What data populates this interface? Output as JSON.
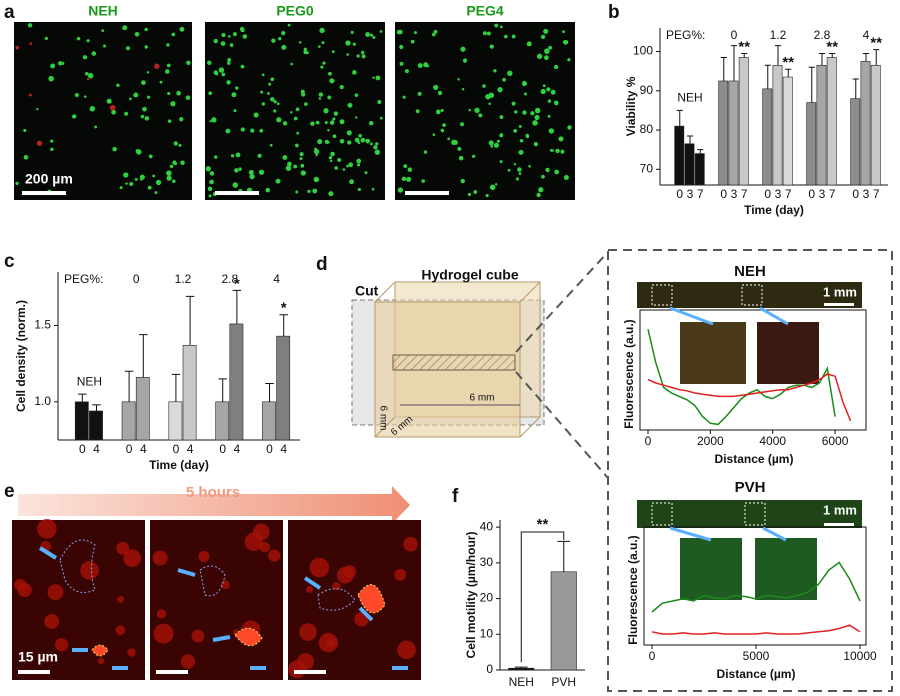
{
  "panel_a": {
    "letter": "a",
    "titles": [
      "NEH",
      "PEG0",
      "PEG4"
    ],
    "scale_bar": "200 µm"
  },
  "panel_d": {
    "letter": "d",
    "cube_label": "Hydrogel cube",
    "cut_label": "Cut",
    "dims": [
      "6 mm",
      "6 mm",
      "6 mm"
    ]
  },
  "panel_e": {
    "letter": "e",
    "duration": "5 hours",
    "scale_bar": "15 µm"
  },
  "chart_data": [
    {
      "type": "grouped_bar",
      "letter": "b",
      "ylabel": "Viability %",
      "xlabel": "Time (day)",
      "group_prefix": "PEG%:",
      "ylim": [
        66,
        106
      ],
      "yticks": [
        70,
        80,
        90,
        100
      ],
      "groups": [
        {
          "name": "NEH",
          "categories": [
            "0",
            "3",
            "7"
          ],
          "colors": [
            "#111111",
            "#111111",
            "#111111"
          ],
          "values": [
            81,
            76.5,
            74
          ],
          "errors": [
            4,
            2,
            1
          ],
          "stars": [
            null,
            null,
            null
          ]
        },
        {
          "name": "0",
          "categories": [
            "0",
            "3",
            "7"
          ],
          "colors": [
            "#8c8c8c",
            "#a6a6a6",
            "#c8c8c8"
          ],
          "values": [
            92.5,
            92.5,
            98.5
          ],
          "errors": [
            6,
            9,
            1
          ],
          "stars": [
            null,
            null,
            "**"
          ]
        },
        {
          "name": "1.2",
          "categories": [
            "0",
            "3",
            "7"
          ],
          "colors": [
            "#8c8c8c",
            "#c8c8c8",
            "#d9d9d9"
          ],
          "values": [
            90.5,
            96.5,
            93.5
          ],
          "errors": [
            6,
            5,
            2
          ],
          "stars": [
            null,
            null,
            "**"
          ]
        },
        {
          "name": "2.8",
          "categories": [
            "0",
            "3",
            "7"
          ],
          "colors": [
            "#8c8c8c",
            "#a6a6a6",
            "#c8c8c8"
          ],
          "values": [
            87,
            96.5,
            98.5
          ],
          "errors": [
            9,
            3,
            1
          ],
          "stars": [
            null,
            null,
            "**"
          ]
        },
        {
          "name": "4",
          "categories": [
            "0",
            "3",
            "7"
          ],
          "colors": [
            "#8c8c8c",
            "#a6a6a6",
            "#c8c8c8"
          ],
          "values": [
            88,
            97.5,
            96.5
          ],
          "errors": [
            5,
            2,
            4
          ],
          "stars": [
            null,
            null,
            "**"
          ]
        }
      ]
    },
    {
      "type": "grouped_bar",
      "letter": "c",
      "ylabel": "Cell density (norm.)",
      "xlabel": "Time (day)",
      "group_prefix": "PEG%:",
      "ylim": [
        0.75,
        1.85
      ],
      "yticks": [
        {
          "value": 1,
          "label": "1.0"
        },
        {
          "value": 1.5,
          "label": "1.5"
        }
      ],
      "groups": [
        {
          "name": "NEH",
          "categories": [
            "0",
            "4"
          ],
          "colors": [
            "#111111",
            "#111111"
          ],
          "values": [
            1.0,
            0.94
          ],
          "errors": [
            0.05,
            0.04
          ],
          "stars": [
            null,
            null
          ]
        },
        {
          "name": "0",
          "categories": [
            "0",
            "4"
          ],
          "colors": [
            "#a6a6a6",
            "#a6a6a6"
          ],
          "values": [
            1.0,
            1.16
          ],
          "errors": [
            0.2,
            0.28
          ],
          "stars": [
            null,
            null
          ]
        },
        {
          "name": "1.2",
          "categories": [
            "0",
            "4"
          ],
          "colors": [
            "#d9d9d9",
            "#c8c8c8"
          ],
          "values": [
            1.0,
            1.37
          ],
          "errors": [
            0.18,
            0.32
          ],
          "stars": [
            null,
            null
          ]
        },
        {
          "name": "2.8",
          "categories": [
            "0",
            "4"
          ],
          "colors": [
            "#a6a6a6",
            "#7f7f7f"
          ],
          "values": [
            1.0,
            1.51
          ],
          "errors": [
            0.15,
            0.22
          ],
          "stars": [
            null,
            "*"
          ]
        },
        {
          "name": "4",
          "categories": [
            "0",
            "4"
          ],
          "colors": [
            "#a6a6a6",
            "#7f7f7f"
          ],
          "values": [
            1.0,
            1.43
          ],
          "errors": [
            0.12,
            0.14
          ],
          "stars": [
            null,
            "*"
          ]
        }
      ]
    },
    {
      "type": "line",
      "title": "NEH",
      "scale_bar": "1 mm",
      "ylabel": "Fluorescence (a.u.)",
      "xlabel": "Distance (µm)",
      "xlim": [
        0,
        6800
      ],
      "xticks": [
        0,
        2000,
        4000,
        6000
      ],
      "ylim": [
        0,
        1
      ],
      "x": [
        0,
        250,
        500,
        750,
        1000,
        1250,
        1500,
        1750,
        2000,
        2250,
        2500,
        2750,
        3000,
        3250,
        3500,
        3750,
        4000,
        4250,
        4500,
        4750,
        5000,
        5250,
        5500,
        5750,
        6000,
        6250,
        6500
      ],
      "series": [
        {
          "color": "#1a8a1a",
          "values": [
            0.9,
            0.6,
            0.38,
            0.33,
            0.3,
            0.27,
            0.22,
            0.12,
            0.06,
            0.05,
            0.12,
            0.2,
            0.28,
            0.33,
            0.36,
            0.3,
            0.28,
            0.32,
            0.38,
            0.4,
            0.4,
            0.38,
            0.42,
            0.55,
            0.12,
            null,
            null
          ]
        },
        {
          "color": "#e02020",
          "values": [
            0.45,
            0.42,
            0.4,
            0.38,
            0.36,
            0.35,
            0.33,
            0.32,
            0.31,
            0.3,
            0.3,
            0.3,
            0.31,
            0.32,
            0.33,
            0.34,
            0.35,
            0.36,
            0.36,
            0.38,
            0.4,
            0.42,
            0.45,
            0.5,
            0.48,
            0.25,
            0.08
          ]
        }
      ]
    },
    {
      "type": "line",
      "title": "PVH",
      "scale_bar": "1 mm",
      "ylabel": "Fluorescence (a.u.)",
      "xlabel": "Distance (µm)",
      "xlim": [
        0,
        10000
      ],
      "xticks": [
        0,
        5000,
        10000
      ],
      "ylim": [
        0,
        1
      ],
      "x": [
        0,
        500,
        1000,
        1500,
        2000,
        2500,
        3000,
        3500,
        4000,
        4500,
        5000,
        5500,
        6000,
        6500,
        7000,
        7500,
        8000,
        8500,
        9000,
        9500,
        10000
      ],
      "series": [
        {
          "color": "#1a8a1a",
          "values": [
            0.3,
            0.38,
            0.4,
            0.42,
            0.4,
            0.45,
            0.43,
            0.42,
            0.45,
            0.44,
            0.42,
            0.45,
            0.44,
            0.43,
            0.45,
            0.48,
            0.55,
            0.68,
            0.75,
            0.6,
            0.4
          ]
        },
        {
          "color": "#e02020",
          "values": [
            0.12,
            0.1,
            0.1,
            0.11,
            0.1,
            0.1,
            0.11,
            0.1,
            0.1,
            0.1,
            0.1,
            0.11,
            0.1,
            0.1,
            0.1,
            0.11,
            0.12,
            0.13,
            0.15,
            0.18,
            0.12
          ]
        }
      ]
    },
    {
      "type": "bar",
      "letter": "f",
      "ylabel": "Cell motility (µm/hour)",
      "categories": [
        "NEH",
        "PVH"
      ],
      "values": [
        0.5,
        27.5
      ],
      "errors": [
        0.3,
        8.5
      ],
      "colors": [
        "#111111",
        "#999999"
      ],
      "significance": "**",
      "ylim": [
        0,
        42
      ],
      "yticks": [
        0,
        10,
        20,
        30,
        40
      ]
    }
  ]
}
